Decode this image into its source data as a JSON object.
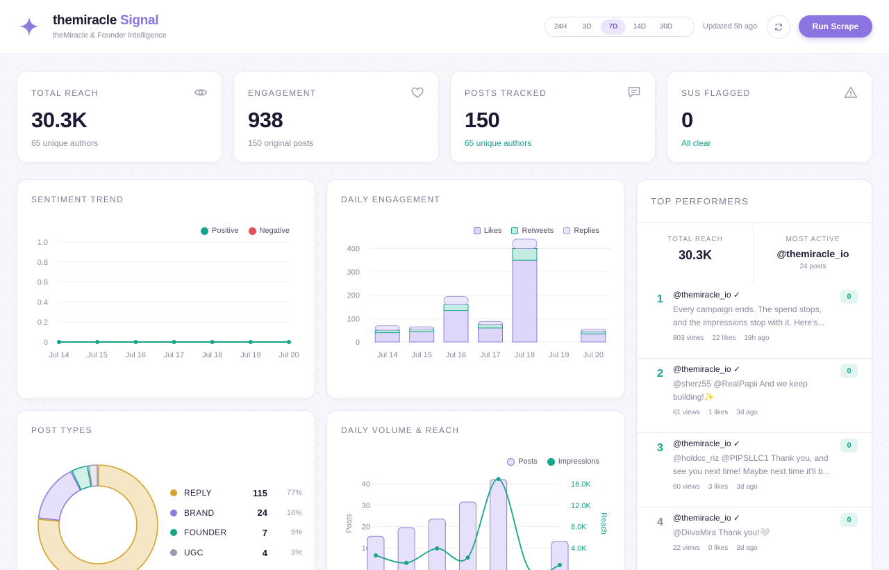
{
  "header": {
    "brand_name": "themiracle",
    "brand_accent": "Signal",
    "subtitle": "theMiracle & Founder Intelligence",
    "ranges": [
      "24H",
      "3D",
      "7D",
      "14D",
      "30D"
    ],
    "active_range": "7D",
    "updated": "Updated 5h ago",
    "run_button": "Run Scrape"
  },
  "stats": [
    {
      "label": "TOTAL REACH",
      "value": "30.3K",
      "sub": "65 unique authors",
      "icon": "eye-icon"
    },
    {
      "label": "ENGAGEMENT",
      "value": "938",
      "sub": "150 original posts",
      "icon": "heart-icon"
    },
    {
      "label": "POSTS TRACKED",
      "value": "150",
      "sub": "65 unique authors",
      "icon": "message-icon"
    },
    {
      "label": "SUS FLAGGED",
      "value": "0",
      "sub": "All clear",
      "icon": "warning-icon"
    }
  ],
  "sentiment": {
    "title": "SENTIMENT TREND",
    "legend": [
      "Positive",
      "Negative"
    ]
  },
  "engagement": {
    "title": "DAILY ENGAGEMENT",
    "legend": [
      "Likes",
      "Retweets",
      "Replies"
    ]
  },
  "post_types": {
    "title": "POST TYPES",
    "items": [
      {
        "name": "REPLY",
        "count": "115",
        "pct": "77%",
        "color": "#d6a12a"
      },
      {
        "name": "BRAND",
        "count": "24",
        "pct": "16%",
        "color": "#8f7ce0"
      },
      {
        "name": "FOUNDER",
        "count": "7",
        "pct": "5%",
        "color": "#15a58a"
      },
      {
        "name": "UGC",
        "count": "4",
        "pct": "3%",
        "color": "#9b98ac"
      }
    ]
  },
  "volume": {
    "title": "DAILY VOLUME & REACH",
    "legend": [
      "Posts",
      "Impressions"
    ],
    "left_axis_label": "Posts",
    "right_axis_label": "Reach"
  },
  "top": {
    "title": "TOP PERFORMERS",
    "total_reach_label": "TOTAL REACH",
    "total_reach_value": "30.3K",
    "most_active_label": "MOST ACTIVE",
    "most_active_handle": "@themiracle_io",
    "most_active_posts": "24 posts",
    "items": [
      {
        "rank": "1",
        "handle": "@themiracle_io ✓",
        "text": "Every campaign ends. The spend stops, and the impressions stop with it. Here's...",
        "views": "803 views",
        "likes": "22 likes",
        "time": "19h ago",
        "score": "0"
      },
      {
        "rank": "2",
        "handle": "@themiracle_io ✓",
        "text": "@sherz55 @RealPapii And we keep building!✨",
        "views": "61 views",
        "likes": "1 likes",
        "time": "3d ago",
        "score": "0"
      },
      {
        "rank": "3",
        "handle": "@themiracle_io ✓",
        "text": "@holdcc_riz @PIPSLLC1 Thank you, and see you next time! Maybe next time it'll b...",
        "views": "60 views",
        "likes": "3 likes",
        "time": "3d ago",
        "score": "0"
      },
      {
        "rank": "4",
        "handle": "@themiracle_io ✓",
        "text": "@DiivaMira Thank you!🤍",
        "views": "22 views",
        "likes": "0 likes",
        "time": "3d ago",
        "score": "0"
      }
    ]
  },
  "chart_data": [
    {
      "type": "line",
      "title": "SENTIMENT TREND",
      "x": [
        "Jul 14",
        "Jul 15",
        "Jul 16",
        "Jul 17",
        "Jul 18",
        "Jul 19",
        "Jul 20"
      ],
      "series": [
        {
          "name": "Positive",
          "values": [
            0,
            0,
            0,
            0,
            0,
            0,
            0
          ],
          "color": "#15a58a"
        },
        {
          "name": "Negative",
          "values": [
            0,
            0,
            0,
            0,
            0,
            0,
            0
          ],
          "color": "#e0505a"
        }
      ],
      "ylim": [
        0,
        1.0
      ],
      "yticks": [
        "0",
        "0.2",
        "0.4",
        "0.6",
        "0.8",
        "1.0"
      ],
      "grid": true,
      "legend_position": "top-right"
    },
    {
      "type": "bar",
      "stacked": true,
      "title": "DAILY ENGAGEMENT",
      "categories": [
        "Jul 14",
        "Jul 15",
        "Jul 16",
        "Jul 17",
        "Jul 18",
        "Jul 19",
        "Jul 20"
      ],
      "series": [
        {
          "name": "Likes",
          "values": [
            40,
            45,
            135,
            60,
            350,
            0,
            35
          ],
          "color": "#ddd6f8"
        },
        {
          "name": "Retweets",
          "values": [
            10,
            10,
            25,
            15,
            50,
            0,
            10
          ],
          "color": "#c5ece2"
        },
        {
          "name": "Replies",
          "values": [
            20,
            10,
            35,
            13,
            40,
            0,
            10
          ],
          "color": "#ebe7fb"
        }
      ],
      "ylim": [
        0,
        440
      ],
      "yticks": [
        "0",
        "100",
        "200",
        "300",
        "400"
      ],
      "grid": true,
      "legend_position": "top-right"
    },
    {
      "type": "pie",
      "title": "POST TYPES",
      "categories": [
        "REPLY",
        "BRAND",
        "FOUNDER",
        "UGC"
      ],
      "values": [
        115,
        24,
        7,
        4
      ],
      "colors": [
        "#f5e6c6",
        "#e6e0fa",
        "#d3f0e8",
        "#e9e7ef"
      ],
      "strokes": [
        "#d6a12a",
        "#8f7ce0",
        "#15a58a",
        "#9b98ac"
      ]
    },
    {
      "type": "bar",
      "title": "DAILY VOLUME & REACH",
      "categories": [
        "",
        "",
        "",
        "",
        "",
        "",
        ""
      ],
      "series": [
        {
          "name": "Posts",
          "values": [
            15.5,
            19.5,
            23.5,
            31.5,
            42,
            0,
            13
          ],
          "color": "#e6e0fa",
          "axis": "left"
        },
        {
          "name": "Impressions",
          "values": [
            2600,
            1200,
            3900,
            2200,
            16900,
            0,
            800
          ],
          "color": "#15a58a",
          "axis": "right",
          "type": "line"
        }
      ],
      "ylim_left": [
        0,
        40
      ],
      "yticks_left": [
        "10",
        "20",
        "30",
        "40"
      ],
      "ylim_right": [
        0,
        16000
      ],
      "yticks_right": [
        "4.0K",
        "8.0K",
        "12.0K",
        "16.0K"
      ],
      "ylabel_left": "Posts",
      "ylabel_right": "Reach",
      "grid": true,
      "legend_position": "top-right"
    }
  ]
}
